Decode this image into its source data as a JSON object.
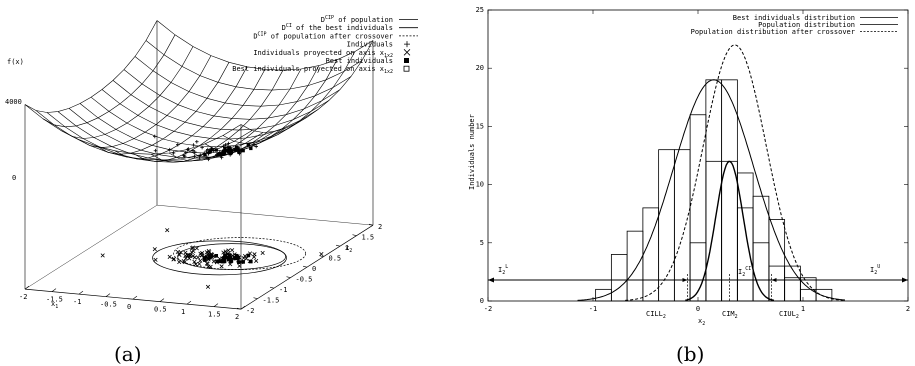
{
  "panel_a": {
    "caption": "(a)",
    "z_label": "f(x)",
    "z_ticks": [
      "4000",
      "0"
    ],
    "x1_label": "x",
    "x1_sub": "1",
    "x2_label": "x",
    "x2_sub": "2",
    "x1_ticks": [
      "-2",
      "-1.5",
      "-1",
      "-0.5",
      "0",
      "0.5",
      "1",
      "1.5",
      "2"
    ],
    "x2_ticks": [
      "-2",
      "-1.5",
      "-1",
      "-0.5",
      "0",
      "0.5",
      "1",
      "1.5",
      "2"
    ],
    "legend": [
      {
        "text": "D",
        "sup": "CIP",
        "tail": " of population",
        "style": "solid"
      },
      {
        "text": "D",
        "sup": "CI",
        "tail": " of the best individuals",
        "style": "solid"
      },
      {
        "text": "D",
        "sup": "CIP",
        "tail": " of population after crossover",
        "style": "dashed"
      },
      {
        "text": "Individuals",
        "sup": "",
        "tail": "",
        "style": "plus"
      },
      {
        "text": "Individuals proyected on axis x",
        "sup": "",
        "tail": "1x2",
        "style": "cross"
      },
      {
        "text": "Best individuals",
        "sup": "",
        "tail": "",
        "style": "star"
      },
      {
        "text": "Best  individuals proyected on axis x",
        "sup": "",
        "tail": "1x2",
        "style": "box"
      }
    ]
  },
  "panel_b": {
    "caption": "(b)",
    "ylabel": "Individuals number",
    "xlabel": "x",
    "xlabel_sub": "2",
    "annotations": {
      "IL": "I",
      "IL_sup": "L",
      "IL_sub": "2",
      "ICI": "I",
      "ICI_sup": "CI",
      "ICI_sub": "2",
      "IU": "I",
      "IU_sup": "U",
      "IU_sub": "2",
      "CILL": "CILL",
      "CILL_sub": "2",
      "CIM": "CIM",
      "CIM_sub": "2",
      "CIUL": "CIUL",
      "CIUL_sub": "2"
    },
    "legend": [
      {
        "label": "Best individuals distribution",
        "style": "solid"
      },
      {
        "label": "Population distribution",
        "style": "solid"
      },
      {
        "label": "Population distribution after crossover",
        "style": "dashed"
      }
    ]
  },
  "chart_data": [
    {
      "type": "surface3d",
      "zlabel": "f(x)",
      "xlabel": "x1",
      "ylabel": "x2",
      "xlim": [
        -2,
        2
      ],
      "ylim": [
        -2,
        2
      ],
      "zlim": [
        0,
        4000
      ]
    },
    {
      "type": "bar",
      "xlim": [
        -2,
        2
      ],
      "ylim": [
        0,
        25
      ],
      "x_ticks": [
        -2,
        -1,
        0,
        1,
        2
      ],
      "y_ticks": [
        0,
        5,
        10,
        15,
        20,
        25
      ],
      "bins_population": [
        {
          "x0": -0.975,
          "x1": -0.825,
          "value": 1
        },
        {
          "x0": -0.825,
          "x1": -0.675,
          "value": 4
        },
        {
          "x0": -0.675,
          "x1": -0.525,
          "value": 6
        },
        {
          "x0": -0.525,
          "x1": -0.375,
          "value": 8
        },
        {
          "x0": -0.375,
          "x1": -0.225,
          "value": 13
        },
        {
          "x0": -0.225,
          "x1": -0.075,
          "value": 13
        },
        {
          "x0": -0.075,
          "x1": 0.075,
          "value": 16
        },
        {
          "x0": 0.075,
          "x1": 0.225,
          "value": 19
        },
        {
          "x0": 0.225,
          "x1": 0.375,
          "value": 19
        },
        {
          "x0": 0.375,
          "x1": 0.525,
          "value": 11
        },
        {
          "x0": 0.525,
          "x1": 0.675,
          "value": 9
        },
        {
          "x0": 0.675,
          "x1": 0.825,
          "value": 7
        },
        {
          "x0": 0.825,
          "x1": 0.975,
          "value": 3
        },
        {
          "x0": 0.975,
          "x1": 1.125,
          "value": 2
        },
        {
          "x0": 1.125,
          "x1": 1.275,
          "value": 1
        }
      ],
      "bins_best": [
        {
          "x0": -0.075,
          "x1": 0.075,
          "value": 5
        },
        {
          "x0": 0.075,
          "x1": 0.225,
          "value": 12
        },
        {
          "x0": 0.225,
          "x1": 0.375,
          "value": 12
        },
        {
          "x0": 0.375,
          "x1": 0.525,
          "value": 8
        },
        {
          "x0": 0.525,
          "x1": 0.675,
          "value": 5
        },
        {
          "x0": 0.675,
          "x1": 0.825,
          "value": 3
        },
        {
          "x0": 0.825,
          "x1": 0.975,
          "value": 2
        },
        {
          "x0": 0.975,
          "x1": 1.125,
          "value": 1
        }
      ],
      "series": [
        {
          "name": "Best individuals distribution",
          "mean": 0.3,
          "sd": 0.13,
          "peak": 12
        },
        {
          "name": "Population distribution",
          "mean": 0.15,
          "sd": 0.38,
          "peak": 19
        },
        {
          "name": "Population distribution after crossover",
          "mean": 0.35,
          "sd": 0.3,
          "peak": 22
        }
      ],
      "hline_y": 1.8,
      "vlines": [
        {
          "x": -0.1,
          "name": "CILL2"
        },
        {
          "x": 0.3,
          "name": "CIM2"
        },
        {
          "x": 0.7,
          "name": "CIUL2"
        }
      ]
    }
  ]
}
